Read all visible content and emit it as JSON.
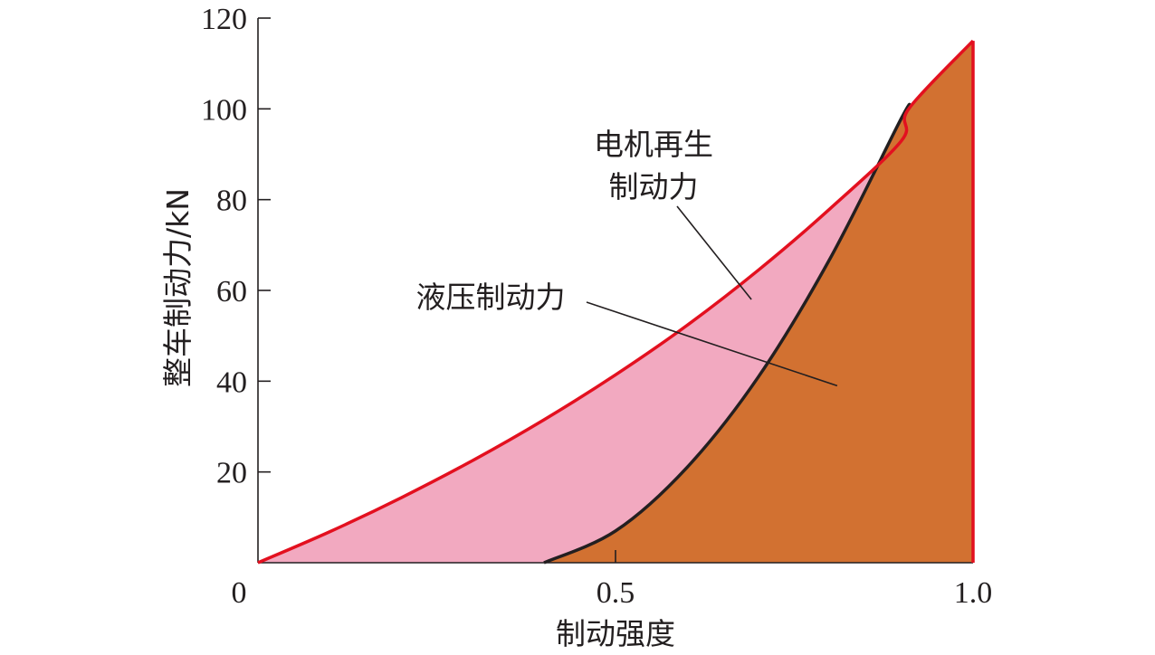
{
  "chart_data": {
    "type": "area",
    "title": "",
    "xlabel": "制动强度",
    "ylabel": "整车制动力/kN",
    "xlim": [
      0,
      1.0
    ],
    "ylim": [
      0,
      120
    ],
    "x_ticks": [
      {
        "value": 0,
        "label": "0"
      },
      {
        "value": 0.5,
        "label": "0.5"
      },
      {
        "value": 1.0,
        "label": "1.0"
      }
    ],
    "y_ticks": [
      {
        "value": 20,
        "label": "20"
      },
      {
        "value": 40,
        "label": "40"
      },
      {
        "value": 60,
        "label": "60"
      },
      {
        "value": 80,
        "label": "80"
      },
      {
        "value": 100,
        "label": "100"
      },
      {
        "value": 120,
        "label": "120"
      }
    ],
    "grid": false,
    "legend": "none",
    "series": [
      {
        "color": "#e3101f",
        "fill": "#f2a9c0",
        "x": [
          0,
          0.1,
          0.2,
          0.3,
          0.4,
          0.5,
          0.6,
          0.7,
          0.8,
          0.9,
          0.91,
          1.0
        ],
        "y": [
          0,
          6.8,
          14.3,
          22.5,
          31.5,
          41.4,
          52.3,
          64.5,
          78.0,
          93.0,
          100,
          115
        ]
      },
      {
        "color": "#231f20",
        "fill": "#d27131",
        "x": [
          0.4,
          0.5,
          0.6,
          0.7,
          0.8,
          0.9,
          0.91
        ],
        "y": [
          0,
          7,
          21,
          41,
          67,
          98,
          100
        ]
      }
    ],
    "annotations": [
      {
        "text": "电机再生",
        "text_line2": "制动力",
        "target": [
          0.69,
          58
        ]
      },
      {
        "text": "液压制动力",
        "target": [
          0.81,
          39
        ]
      }
    ]
  }
}
